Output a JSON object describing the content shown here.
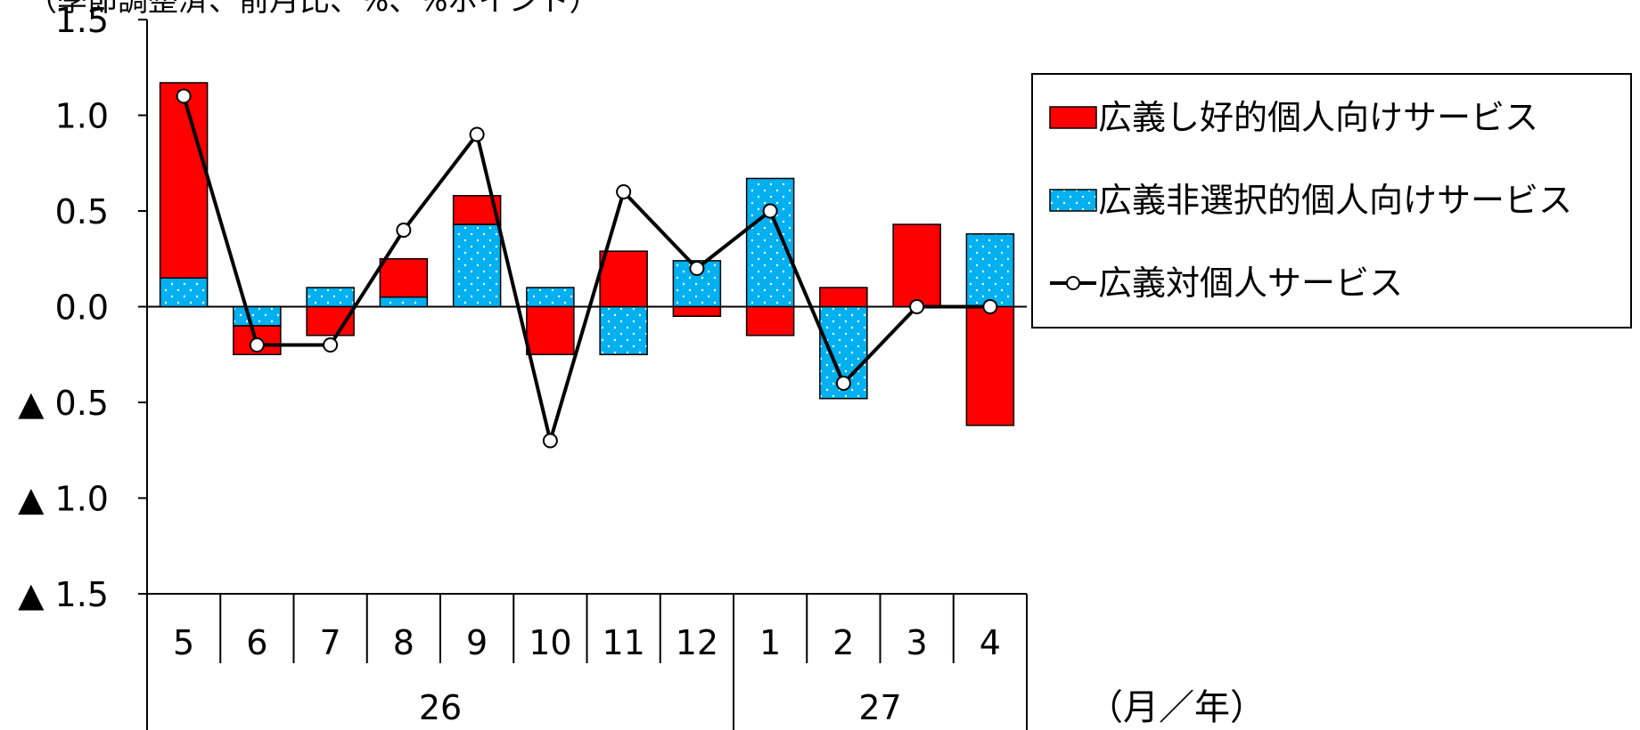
{
  "chart_data": {
    "type": "bar",
    "subtype": "stacked-bar-with-line",
    "header_text": "（季節調整済、前月比、%、%ポイント）",
    "x_unit_label": "（月／年）",
    "months": [
      "5",
      "6",
      "7",
      "8",
      "9",
      "10",
      "11",
      "12",
      "1",
      "2",
      "3",
      "4"
    ],
    "years": [
      {
        "label": "26",
        "span": 8
      },
      {
        "label": "27",
        "span": 4
      }
    ],
    "y_ticks": [
      "1.5",
      "1.0",
      "0.5",
      "0.0",
      "▲ 0.5",
      "▲ 1.0",
      "▲ 1.5"
    ],
    "ylim": [
      -1.5,
      1.5
    ],
    "series": [
      {
        "name": "広義し好的個人向けサービス",
        "kind": "bar",
        "color": "#ff0000",
        "values": [
          1.02,
          -0.15,
          -0.15,
          0.2,
          0.15,
          -0.25,
          0.29,
          -0.05,
          -0.15,
          0.1,
          0.43,
          -0.62
        ]
      },
      {
        "name": "広義非選択的個人向けサービス",
        "kind": "bar",
        "color": "#00b0f0",
        "pattern": "dots",
        "values": [
          0.15,
          -0.1,
          0.1,
          0.05,
          0.43,
          0.1,
          -0.25,
          0.24,
          0.67,
          -0.48,
          0.0,
          0.38
        ]
      },
      {
        "name": "広義対個人サービス",
        "kind": "line",
        "color": "#000000",
        "marker": "open-circle",
        "values": [
          1.1,
          -0.2,
          -0.2,
          0.4,
          0.9,
          -0.7,
          0.6,
          0.2,
          0.5,
          -0.4,
          0.0,
          0.0
        ]
      }
    ],
    "legend_position": "right"
  }
}
